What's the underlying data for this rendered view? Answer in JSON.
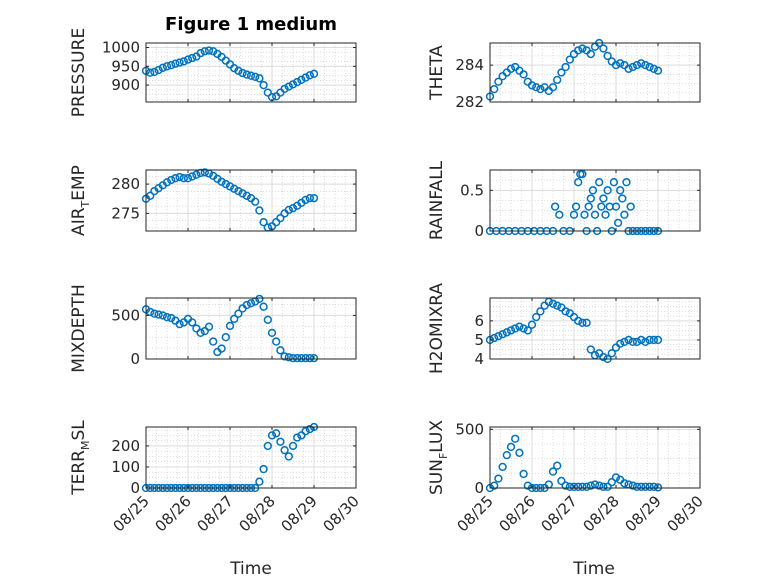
{
  "figure": {
    "title": "Figure 1 medium",
    "xlabel": "Time"
  },
  "colors": {
    "marker": "#0072bd",
    "axes": "#262626",
    "grid": "#dcdcdc",
    "minor_grid": "#c8c8c8"
  },
  "chart_data": [
    {
      "type": "scatter",
      "title": "Figure 1 medium",
      "ylabel": "PRESSURE",
      "ylim": [
        855,
        1012
      ],
      "yticks": [
        900,
        950,
        1000
      ],
      "xlim": [
        "08/25",
        "08/30"
      ],
      "xticks": [
        "08/25",
        "08/26",
        "08/27",
        "08/28",
        "08/29",
        "08/30"
      ],
      "show_xticklabels": false,
      "grid": true,
      "x": [
        0.0,
        0.1,
        0.2,
        0.3,
        0.4,
        0.5,
        0.6,
        0.7,
        0.8,
        0.9,
        1.0,
        1.1,
        1.2,
        1.3,
        1.4,
        1.5,
        1.6,
        1.7,
        1.8,
        1.9,
        2.0,
        2.1,
        2.2,
        2.3,
        2.4,
        2.5,
        2.6,
        2.7,
        2.8,
        2.9,
        3.0,
        3.1,
        3.2,
        3.3,
        3.4,
        3.5,
        3.6,
        3.7,
        3.8,
        3.9,
        4.0
      ],
      "y": [
        938,
        933,
        935,
        940,
        946,
        950,
        953,
        957,
        960,
        963,
        968,
        972,
        976,
        985,
        990,
        992,
        990,
        983,
        975,
        965,
        955,
        945,
        938,
        932,
        928,
        925,
        922,
        918,
        900,
        880,
        868,
        870,
        880,
        890,
        896,
        902,
        908,
        914,
        920,
        926,
        930
      ]
    },
    {
      "type": "scatter",
      "ylabel": "THETA",
      "ylim": [
        282,
        285.2
      ],
      "yticks": [
        282,
        284
      ],
      "xlim": [
        "08/25",
        "08/30"
      ],
      "xticks": [
        "08/25",
        "08/26",
        "08/27",
        "08/28",
        "08/29",
        "08/30"
      ],
      "show_xticklabels": false,
      "grid": true,
      "x": [
        0.0,
        0.1,
        0.2,
        0.3,
        0.4,
        0.5,
        0.6,
        0.7,
        0.8,
        0.9,
        1.0,
        1.1,
        1.2,
        1.3,
        1.4,
        1.5,
        1.6,
        1.7,
        1.8,
        1.9,
        2.0,
        2.1,
        2.2,
        2.3,
        2.4,
        2.5,
        2.6,
        2.7,
        2.8,
        2.9,
        3.0,
        3.1,
        3.2,
        3.3,
        3.4,
        3.5,
        3.6,
        3.7,
        3.8,
        3.9,
        4.0
      ],
      "y": [
        282.3,
        282.7,
        283.1,
        283.4,
        283.6,
        283.8,
        283.9,
        283.7,
        283.5,
        283.1,
        282.9,
        282.8,
        282.7,
        282.8,
        282.6,
        282.8,
        283.2,
        283.6,
        283.9,
        284.3,
        284.6,
        284.8,
        284.9,
        284.8,
        284.6,
        285.0,
        285.2,
        284.9,
        284.5,
        284.2,
        284.0,
        284.1,
        284.0,
        283.8,
        283.9,
        284.0,
        284.1,
        284.0,
        283.9,
        283.8,
        283.7
      ]
    },
    {
      "type": "scatter",
      "ylabel": "AIR",
      "ylabel_sub": "T",
      "ylabel_rest": "EMP",
      "ylim": [
        272,
        282.4
      ],
      "yticks": [
        275,
        280
      ],
      "xlim": [
        "08/25",
        "08/30"
      ],
      "xticks": [
        "08/25",
        "08/26",
        "08/27",
        "08/28",
        "08/29",
        "08/30"
      ],
      "show_xticklabels": false,
      "grid": true,
      "x": [
        0.0,
        0.1,
        0.2,
        0.3,
        0.4,
        0.5,
        0.6,
        0.7,
        0.8,
        0.9,
        1.0,
        1.1,
        1.2,
        1.3,
        1.4,
        1.5,
        1.6,
        1.7,
        1.8,
        1.9,
        2.0,
        2.1,
        2.2,
        2.3,
        2.4,
        2.5,
        2.6,
        2.7,
        2.8,
        2.9,
        3.0,
        3.1,
        3.2,
        3.3,
        3.4,
        3.5,
        3.6,
        3.7,
        3.8,
        3.9,
        4.0
      ],
      "y": [
        277.5,
        278.0,
        278.8,
        279.3,
        279.8,
        280.3,
        280.7,
        281.0,
        281.2,
        281.0,
        281.0,
        281.3,
        281.6,
        281.9,
        282.0,
        281.8,
        281.4,
        280.9,
        280.4,
        280.0,
        279.6,
        279.2,
        278.8,
        278.4,
        278.0,
        277.6,
        277.0,
        275.5,
        273.5,
        272.6,
        272.8,
        273.5,
        274.2,
        275.0,
        275.6,
        275.9,
        276.3,
        276.8,
        277.3,
        277.6,
        277.6
      ]
    },
    {
      "type": "scatter",
      "ylabel": "RAINFALL",
      "ylim": [
        0,
        0.75
      ],
      "yticks": [
        0,
        0.5
      ],
      "xlim": [
        "08/25",
        "08/30"
      ],
      "xticks": [
        "08/25",
        "08/26",
        "08/27",
        "08/28",
        "08/29",
        "08/30"
      ],
      "show_xticklabels": false,
      "grid": true,
      "x": [
        0.0,
        0.15,
        0.3,
        0.45,
        0.6,
        0.75,
        0.9,
        1.05,
        1.2,
        1.35,
        1.5,
        1.55,
        1.65,
        1.75,
        1.9,
        2.0,
        2.05,
        2.1,
        2.15,
        2.2,
        2.25,
        2.3,
        2.35,
        2.4,
        2.45,
        2.5,
        2.55,
        2.6,
        2.65,
        2.7,
        2.75,
        2.8,
        2.85,
        2.9,
        2.95,
        3.0,
        3.05,
        3.1,
        3.15,
        3.2,
        3.25,
        3.3,
        3.35,
        3.4,
        3.5,
        3.6,
        3.7,
        3.8,
        3.9,
        4.0
      ],
      "y": [
        0,
        0,
        0,
        0,
        0,
        0,
        0,
        0,
        0,
        0,
        0,
        0.3,
        0.2,
        0,
        0,
        0.2,
        0.3,
        0.6,
        0.7,
        0.7,
        0.2,
        0,
        0.3,
        0.4,
        0.5,
        0.2,
        0,
        0.6,
        0.3,
        0.4,
        0.2,
        0.5,
        0.3,
        0,
        0.6,
        0.3,
        0.1,
        0.5,
        0.4,
        0.2,
        0.6,
        0,
        0.3,
        0,
        0,
        0,
        0,
        0,
        0,
        0
      ]
    },
    {
      "type": "scatter",
      "ylabel": "MIXDEPTH",
      "ylim": [
        0,
        700
      ],
      "yticks": [
        0,
        500
      ],
      "xlim": [
        "08/25",
        "08/30"
      ],
      "xticks": [
        "08/25",
        "08/26",
        "08/27",
        "08/28",
        "08/29",
        "08/30"
      ],
      "show_xticklabels": false,
      "grid": true,
      "x": [
        0.0,
        0.1,
        0.2,
        0.3,
        0.4,
        0.5,
        0.6,
        0.7,
        0.8,
        0.9,
        1.0,
        1.1,
        1.2,
        1.3,
        1.4,
        1.5,
        1.6,
        1.7,
        1.8,
        1.9,
        2.0,
        2.1,
        2.2,
        2.3,
        2.4,
        2.5,
        2.6,
        2.7,
        2.8,
        2.9,
        3.0,
        3.1,
        3.2,
        3.3,
        3.4,
        3.5,
        3.6,
        3.7,
        3.8,
        3.9,
        4.0
      ],
      "y": [
        570,
        540,
        520,
        510,
        500,
        480,
        470,
        440,
        400,
        420,
        460,
        420,
        350,
        300,
        320,
        370,
        200,
        80,
        120,
        250,
        380,
        460,
        520,
        580,
        620,
        640,
        660,
        690,
        600,
        450,
        300,
        200,
        100,
        30,
        20,
        10,
        10,
        10,
        10,
        10,
        10
      ]
    },
    {
      "type": "scatter",
      "ylabel": "H2OMIXRA",
      "ylim": [
        4,
        7.2
      ],
      "yticks": [
        4,
        5,
        6
      ],
      "xlim": [
        "08/25",
        "08/30"
      ],
      "xticks": [
        "08/25",
        "08/26",
        "08/27",
        "08/28",
        "08/29",
        "08/30"
      ],
      "show_xticklabels": false,
      "grid": true,
      "x": [
        0.0,
        0.1,
        0.2,
        0.3,
        0.4,
        0.5,
        0.6,
        0.7,
        0.8,
        0.9,
        1.0,
        1.1,
        1.2,
        1.3,
        1.4,
        1.5,
        1.6,
        1.7,
        1.8,
        1.9,
        2.0,
        2.1,
        2.2,
        2.3,
        2.4,
        2.5,
        2.6,
        2.7,
        2.8,
        2.9,
        3.0,
        3.1,
        3.2,
        3.3,
        3.4,
        3.5,
        3.6,
        3.7,
        3.8,
        3.9,
        4.0
      ],
      "y": [
        5.0,
        5.1,
        5.2,
        5.3,
        5.4,
        5.5,
        5.6,
        5.7,
        5.6,
        5.5,
        5.8,
        6.2,
        6.5,
        6.8,
        7.0,
        6.9,
        6.8,
        6.7,
        6.5,
        6.4,
        6.2,
        6.0,
        5.9,
        5.9,
        4.5,
        4.2,
        4.3,
        4.1,
        4.0,
        4.3,
        4.6,
        4.8,
        4.9,
        5.0,
        4.9,
        4.9,
        5.0,
        4.9,
        5.0,
        5.0,
        5.0
      ]
    },
    {
      "type": "scatter",
      "ylabel": "TERR",
      "ylabel_sub": "M",
      "ylabel_rest": "SL",
      "ylim": [
        0,
        290
      ],
      "yticks": [
        0,
        100,
        200
      ],
      "xlim": [
        "08/25",
        "08/30"
      ],
      "xticks": [
        "08/25",
        "08/26",
        "08/27",
        "08/28",
        "08/29",
        "08/30"
      ],
      "show_xticklabels": true,
      "grid": true,
      "x": [
        0.0,
        0.1,
        0.2,
        0.3,
        0.4,
        0.5,
        0.6,
        0.7,
        0.8,
        0.9,
        1.0,
        1.1,
        1.2,
        1.3,
        1.4,
        1.5,
        1.6,
        1.7,
        1.8,
        1.9,
        2.0,
        2.1,
        2.2,
        2.3,
        2.4,
        2.5,
        2.6,
        2.7,
        2.8,
        2.9,
        3.0,
        3.1,
        3.2,
        3.3,
        3.4,
        3.5,
        3.6,
        3.7,
        3.8,
        3.9,
        4.0
      ],
      "y": [
        0,
        0,
        0,
        0,
        0,
        0,
        0,
        0,
        0,
        0,
        0,
        0,
        0,
        0,
        0,
        0,
        0,
        0,
        0,
        0,
        0,
        0,
        0,
        0,
        0,
        0,
        0,
        30,
        90,
        200,
        250,
        260,
        220,
        180,
        150,
        200,
        240,
        250,
        270,
        280,
        290
      ]
    },
    {
      "type": "scatter",
      "ylabel": "SUN",
      "ylabel_sub": "F",
      "ylabel_rest": "LUX",
      "ylim": [
        0,
        520
      ],
      "yticks": [
        0,
        500
      ],
      "xlim": [
        "08/25",
        "08/30"
      ],
      "xticks": [
        "08/25",
        "08/26",
        "08/27",
        "08/28",
        "08/29",
        "08/30"
      ],
      "show_xticklabels": true,
      "grid": true,
      "x": [
        0.0,
        0.1,
        0.2,
        0.3,
        0.4,
        0.5,
        0.6,
        0.7,
        0.8,
        0.9,
        1.0,
        1.1,
        1.2,
        1.3,
        1.4,
        1.5,
        1.6,
        1.7,
        1.8,
        1.9,
        2.0,
        2.1,
        2.2,
        2.3,
        2.4,
        2.5,
        2.6,
        2.7,
        2.8,
        2.9,
        3.0,
        3.1,
        3.2,
        3.3,
        3.4,
        3.5,
        3.6,
        3.7,
        3.8,
        3.9,
        4.0
      ],
      "y": [
        0,
        20,
        80,
        180,
        280,
        350,
        420,
        300,
        120,
        20,
        0,
        0,
        0,
        0,
        30,
        140,
        190,
        60,
        20,
        10,
        10,
        10,
        10,
        10,
        20,
        30,
        20,
        10,
        10,
        50,
        90,
        70,
        40,
        30,
        20,
        10,
        10,
        10,
        10,
        10,
        5
      ]
    }
  ]
}
